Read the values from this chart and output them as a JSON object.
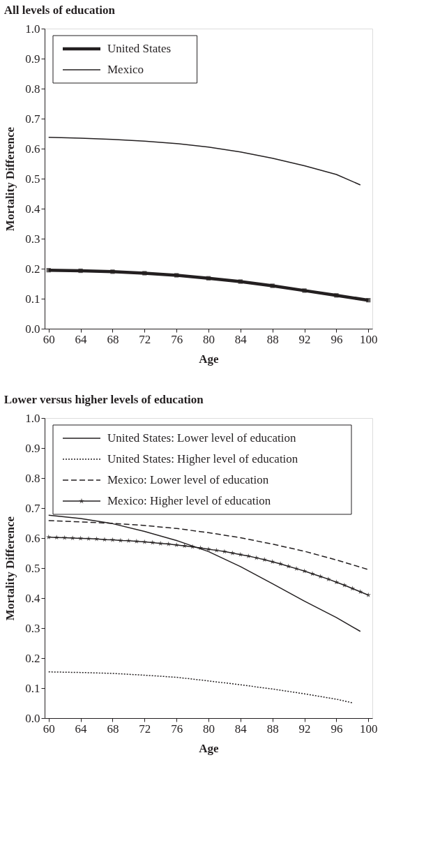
{
  "chart_data": [
    {
      "type": "line",
      "title": "All levels of education",
      "xlabel": "Age",
      "ylabel": "Mortality Difference",
      "xlim": [
        59.5,
        100.5
      ],
      "xticks": [
        60,
        64,
        68,
        72,
        76,
        80,
        84,
        88,
        92,
        96,
        100
      ],
      "ylim": [
        0,
        1
      ],
      "yticks": [
        {
          "value": 0,
          "label": "0.0"
        },
        0.1,
        0.2,
        0.3,
        0.4,
        0.5,
        0.6,
        0.7,
        0.8,
        0.9,
        {
          "value": 1,
          "label": "1.0"
        }
      ],
      "grid": false,
      "legend": "top left",
      "series": [
        {
          "name": "United States",
          "color": "#231f20",
          "marker": "square",
          "line_style": "solid",
          "x": [
            60,
            64,
            68,
            72,
            76,
            80,
            84,
            88,
            92,
            96,
            100
          ],
          "values": [
            0.195,
            0.193,
            0.19,
            0.185,
            0.178,
            0.168,
            0.157,
            0.143,
            0.127,
            0.111,
            0.095
          ]
        },
        {
          "name": "Mexico",
          "color": "#231f20",
          "marker": "none",
          "line_style": "solid",
          "x": [
            60,
            64,
            68,
            72,
            76,
            80,
            84,
            88,
            92,
            96,
            99
          ],
          "values": [
            0.638,
            0.635,
            0.631,
            0.625,
            0.617,
            0.605,
            0.589,
            0.568,
            0.543,
            0.514,
            0.479
          ]
        }
      ]
    },
    {
      "type": "line",
      "title": "Lower versus higher levels of education",
      "xlabel": "Age",
      "ylabel": "Mortality Difference",
      "xlim": [
        59.5,
        100.5
      ],
      "xticks": [
        60,
        64,
        68,
        72,
        76,
        80,
        84,
        88,
        92,
        96,
        100
      ],
      "ylim": [
        0,
        1
      ],
      "yticks": [
        {
          "value": 0,
          "label": "0.0"
        },
        0.1,
        0.2,
        0.3,
        0.4,
        0.5,
        0.6,
        0.7,
        0.8,
        0.9,
        {
          "value": 1,
          "label": "1.0"
        }
      ],
      "grid": false,
      "legend": "top left",
      "series": [
        {
          "name": "United States: Lower level of education",
          "color": "#231f20",
          "marker": "none",
          "line_style": "solid",
          "x": [
            60,
            64,
            68,
            72,
            76,
            80,
            84,
            88,
            92,
            96,
            99
          ],
          "values": [
            0.676,
            0.665,
            0.648,
            0.622,
            0.592,
            0.555,
            0.505,
            0.448,
            0.39,
            0.335,
            0.289
          ]
        },
        {
          "name": "United States: Higher level of education",
          "color": "#231f20",
          "marker": "none",
          "line_style": "dotted",
          "x": [
            60,
            64,
            68,
            72,
            76,
            80,
            84,
            88,
            92,
            96,
            98
          ],
          "values": [
            0.154,
            0.152,
            0.149,
            0.143,
            0.136,
            0.124,
            0.111,
            0.097,
            0.081,
            0.063,
            0.051
          ]
        },
        {
          "name": "Mexico: Lower level of education",
          "color": "#231f20",
          "marker": "none",
          "line_style": "dashed",
          "x": [
            60,
            64,
            68,
            72,
            76,
            80,
            84,
            88,
            92,
            96,
            100
          ],
          "values": [
            0.658,
            0.654,
            0.649,
            0.642,
            0.632,
            0.618,
            0.601,
            0.58,
            0.556,
            0.527,
            0.495
          ]
        },
        {
          "name": "Mexico: Higher level of education",
          "color": "#231f20",
          "marker": "star",
          "line_style": "solid",
          "x": [
            60,
            61,
            62,
            63,
            64,
            65,
            66,
            67,
            68,
            69,
            70,
            71,
            72,
            73,
            74,
            75,
            76,
            77,
            78,
            79,
            80,
            81,
            82,
            83,
            84,
            85,
            86,
            87,
            88,
            89,
            90,
            91,
            92,
            93,
            94,
            95,
            96,
            97,
            98,
            99,
            100
          ],
          "values": [
            0.603,
            0.602,
            0.601,
            0.6,
            0.599,
            0.598,
            0.597,
            0.595,
            0.594,
            0.592,
            0.591,
            0.589,
            0.587,
            0.585,
            0.582,
            0.58,
            0.577,
            0.574,
            0.571,
            0.567,
            0.563,
            0.559,
            0.555,
            0.55,
            0.545,
            0.54,
            0.534,
            0.528,
            0.521,
            0.514,
            0.506,
            0.498,
            0.49,
            0.481,
            0.472,
            0.463,
            0.453,
            0.443,
            0.432,
            0.421,
            0.41
          ]
        }
      ]
    }
  ]
}
